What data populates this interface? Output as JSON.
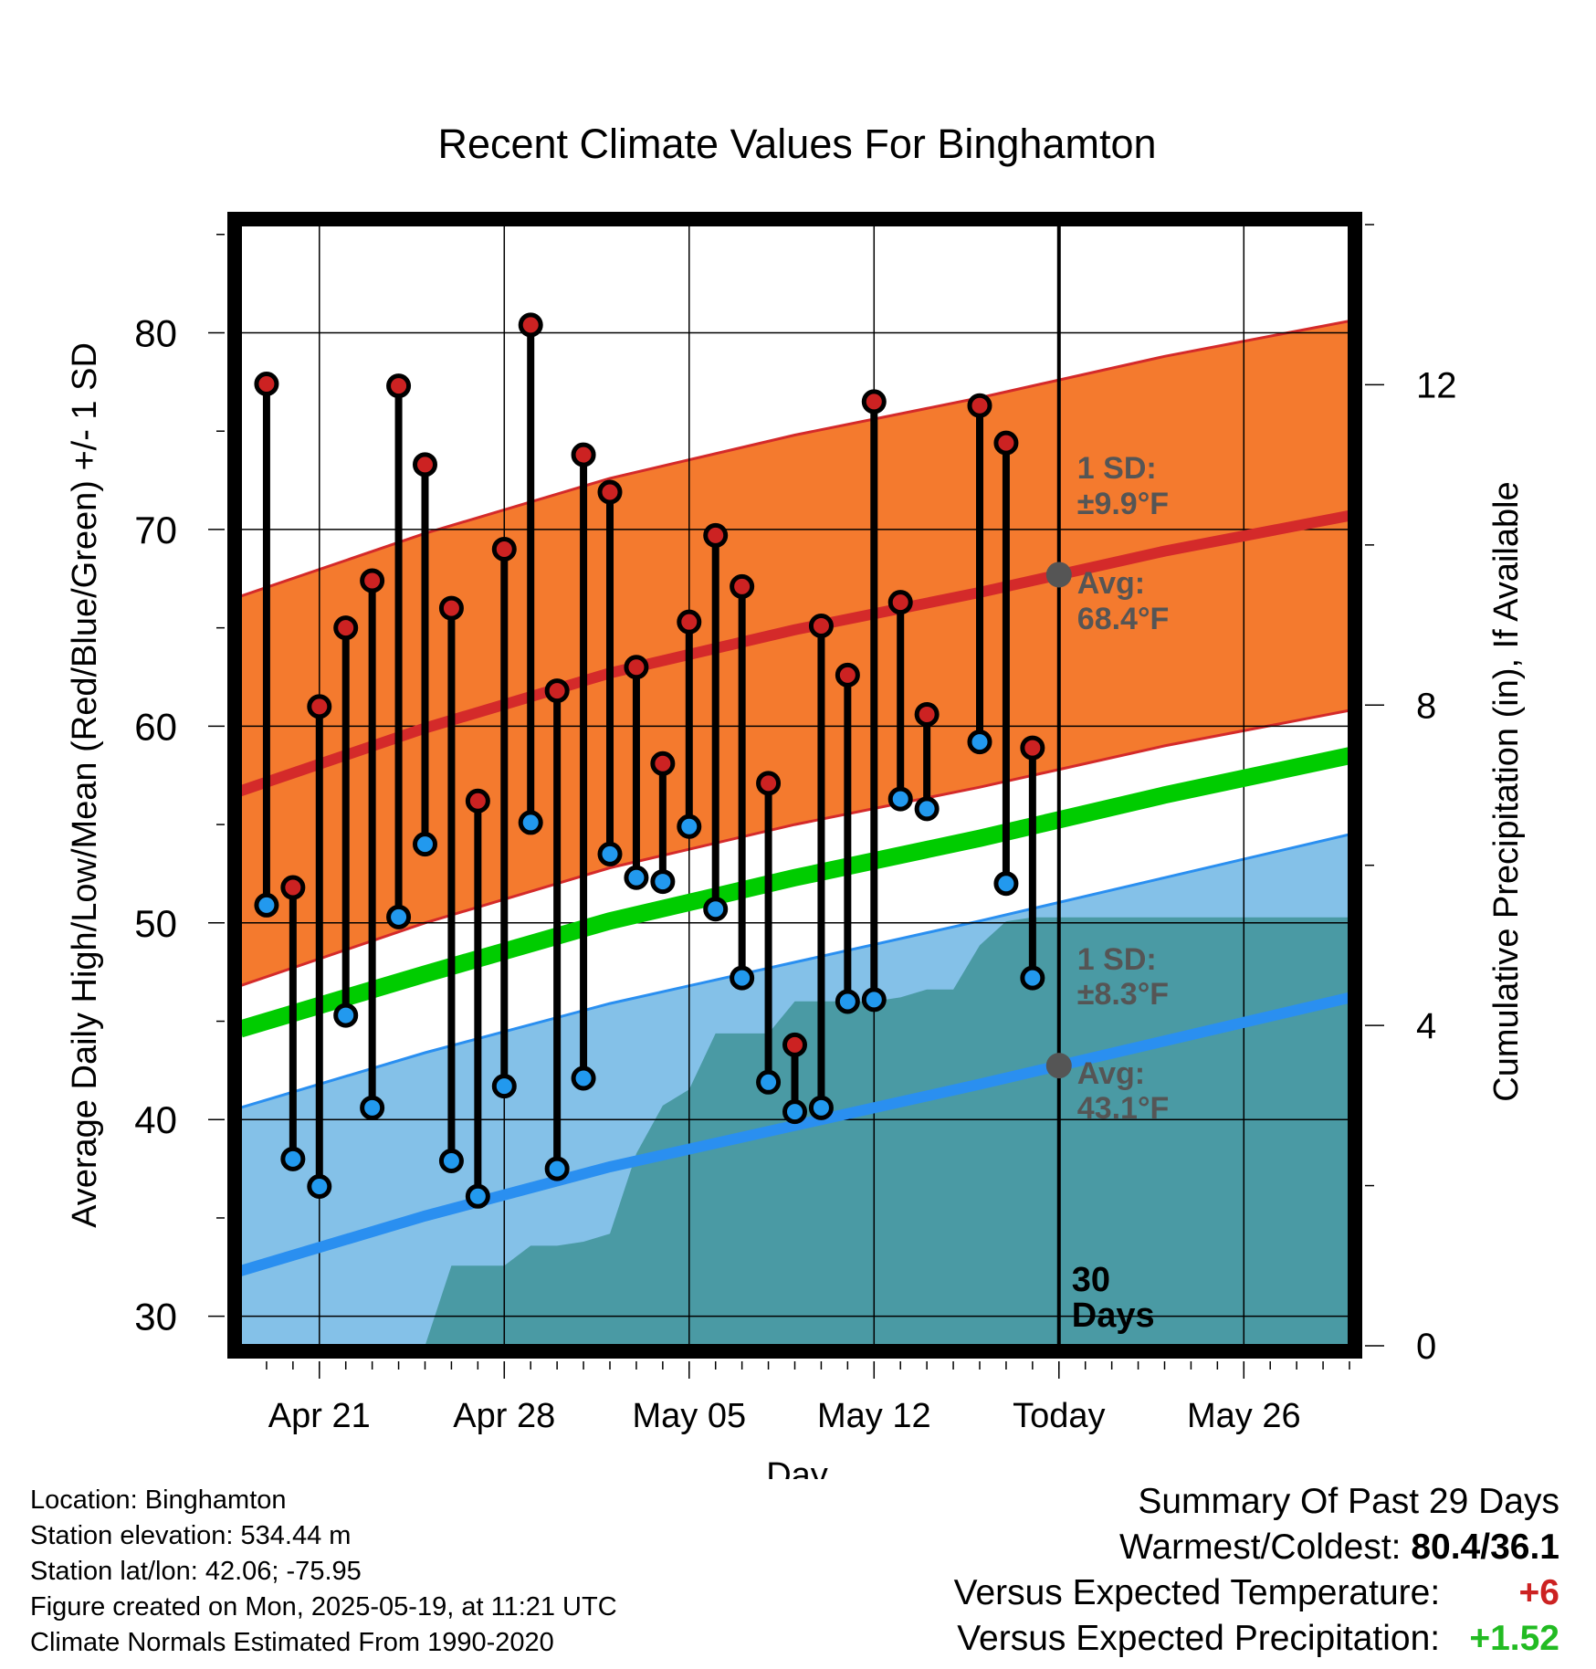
{
  "chart_data": {
    "type": "line",
    "title": "Recent Climate Values For Binghamton",
    "xlabel": "Day",
    "ylabel": "Average Daily High/Low/Mean (Red/Blue/Green) +/- 1 SD",
    "y2label": "Cumulative Precipitation (in), If Available",
    "ylim": [
      28.5,
      85.5
    ],
    "y2lim": [
      0,
      14
    ],
    "yticks": [
      "30",
      "40",
      "50",
      "60",
      "70",
      "80"
    ],
    "y2ticks": [
      "0",
      "4",
      "8",
      "12"
    ],
    "xlim": [
      "2025-04-18",
      "2025-05-30"
    ],
    "xticks": [
      {
        "date": "2025-04-21",
        "label": "Apr 21"
      },
      {
        "date": "2025-04-28",
        "label": "Apr 28"
      },
      {
        "date": "2025-05-05",
        "label": "May 05"
      },
      {
        "date": "2025-05-12",
        "label": "May 12"
      },
      {
        "date": "2025-05-19",
        "label": "Today"
      },
      {
        "date": "2025-05-26",
        "label": "May 26"
      }
    ],
    "today": "2025-05-19",
    "today_label": [
      "30",
      "Days"
    ],
    "daily": [
      {
        "date": "2025-04-19",
        "high": 77.4,
        "low": 50.9
      },
      {
        "date": "2025-04-20",
        "high": 51.8,
        "low": 38.0
      },
      {
        "date": "2025-04-21",
        "high": 61.0,
        "low": 36.6
      },
      {
        "date": "2025-04-22",
        "high": 65.0,
        "low": 45.3
      },
      {
        "date": "2025-04-23",
        "high": 67.4,
        "low": 40.6
      },
      {
        "date": "2025-04-24",
        "high": 77.3,
        "low": 50.3
      },
      {
        "date": "2025-04-25",
        "high": 73.3,
        "low": 54.0
      },
      {
        "date": "2025-04-26",
        "high": 66.0,
        "low": 37.9
      },
      {
        "date": "2025-04-27",
        "high": 56.2,
        "low": 36.1
      },
      {
        "date": "2025-04-28",
        "high": 69.0,
        "low": 41.7
      },
      {
        "date": "2025-04-29",
        "high": 80.4,
        "low": 55.1
      },
      {
        "date": "2025-04-30",
        "high": 61.8,
        "low": 37.5
      },
      {
        "date": "2025-05-01",
        "high": 73.8,
        "low": 42.1
      },
      {
        "date": "2025-05-02",
        "high": 71.9,
        "low": 53.5
      },
      {
        "date": "2025-05-03",
        "high": 63.0,
        "low": 52.3
      },
      {
        "date": "2025-05-04",
        "high": 58.1,
        "low": 52.1
      },
      {
        "date": "2025-05-05",
        "high": 65.3,
        "low": 54.9
      },
      {
        "date": "2025-05-06",
        "high": 69.7,
        "low": 50.7
      },
      {
        "date": "2025-05-07",
        "high": 67.1,
        "low": 47.2
      },
      {
        "date": "2025-05-08",
        "high": 57.1,
        "low": 41.9
      },
      {
        "date": "2025-05-09",
        "high": 43.8,
        "low": 40.4
      },
      {
        "date": "2025-05-10",
        "high": 65.1,
        "low": 40.6
      },
      {
        "date": "2025-05-11",
        "high": 62.6,
        "low": 46.0
      },
      {
        "date": "2025-05-12",
        "high": 76.5,
        "low": 46.1
      },
      {
        "date": "2025-05-13",
        "high": 66.3,
        "low": 56.3
      },
      {
        "date": "2025-05-14",
        "high": 60.6,
        "low": 55.8
      },
      {
        "date": "2025-05-16",
        "high": 76.3,
        "low": 59.2
      },
      {
        "date": "2025-05-17",
        "high": 74.4,
        "low": 52.0
      },
      {
        "date": "2025-05-18",
        "high": 58.9,
        "low": 47.2
      }
    ],
    "normals": {
      "dates": [
        "2025-04-18",
        "2025-04-25",
        "2025-05-02",
        "2025-05-09",
        "2025-05-16",
        "2025-05-23",
        "2025-05-30"
      ],
      "high": [
        56.7,
        59.9,
        62.7,
        64.9,
        66.8,
        68.9,
        70.7
      ],
      "low": [
        32.3,
        35.1,
        37.6,
        39.7,
        41.8,
        44.0,
        46.2
      ],
      "mean": [
        44.6,
        47.4,
        50.1,
        52.3,
        54.3,
        56.5,
        58.5
      ],
      "high_sd": 9.9,
      "low_sd": 8.3
    },
    "precip": {
      "dates": [
        "2025-04-18",
        "2025-04-25",
        "2025-04-26",
        "2025-04-27",
        "2025-04-28",
        "2025-04-29",
        "2025-04-30",
        "2025-05-01",
        "2025-05-02",
        "2025-05-03",
        "2025-05-04",
        "2025-05-05",
        "2025-05-06",
        "2025-05-07",
        "2025-05-08",
        "2025-05-09",
        "2025-05-10",
        "2025-05-11",
        "2025-05-12",
        "2025-05-13",
        "2025-05-14",
        "2025-05-15",
        "2025-05-16",
        "2025-05-17",
        "2025-05-18",
        "2025-05-19",
        "2025-05-30"
      ],
      "values": [
        0,
        0,
        1.0,
        1.0,
        1.0,
        1.25,
        1.25,
        1.3,
        1.4,
        2.4,
        3.0,
        3.2,
        3.9,
        3.9,
        3.9,
        4.3,
        4.3,
        4.3,
        4.3,
        4.35,
        4.45,
        4.45,
        5.0,
        5.3,
        5.35,
        5.35,
        5.35
      ]
    },
    "annotations": {
      "high_sd": [
        "1 SD:",
        "±9.9°F"
      ],
      "high_avg": [
        "Avg:",
        "68.4°F"
      ],
      "low_sd": [
        "1 SD:",
        "±8.3°F"
      ],
      "low_avg": [
        "Avg:",
        "43.1°F"
      ]
    },
    "colors": {
      "high_band": "#f47a2e",
      "high_line": "#d42a2a",
      "low_band": "#84c1e8",
      "low_line": "#2a8ff0",
      "mean_line": "#00cc00",
      "precip": "#4a9aa4",
      "high_dot": "#cc2222",
      "low_dot": "#2299ee",
      "annotation": "#555555"
    }
  },
  "location": {
    "name_line": "Location: Binghamton",
    "elevation_line": "Station elevation: 534.44 m",
    "latlon_line": "Station lat/lon: 42.06; -75.95",
    "created_line": "Figure created on Mon, 2025-05-19, at 11:21 UTC",
    "normals_line": "Climate Normals Estimated From 1990-2020"
  },
  "summary": {
    "title": "Summary Of Past 29 Days",
    "warm_cold_label": "Warmest/Coldest:",
    "warm_cold_value": "80.4/36.1",
    "temp_label": "Versus Expected Temperature:",
    "temp_value": "+6",
    "precip_label": "Versus Expected Precipitation:",
    "precip_value": "+1.52"
  }
}
